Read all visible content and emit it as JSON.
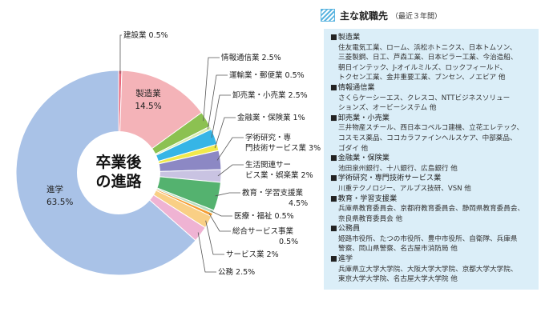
{
  "chart_data": {
    "type": "pie",
    "center_label": [
      "卒業後",
      "の進路"
    ],
    "slices": [
      {
        "name": "建設業",
        "value": 0.5,
        "unit": "%",
        "color": "#e8697d",
        "label_side": "right"
      },
      {
        "name": "製造業",
        "value": 14.5,
        "unit": "%",
        "color": "#f4b3b8",
        "label_side": "inside"
      },
      {
        "name": "情報通信業",
        "value": 2.5,
        "unit": "%",
        "color": "#8cc151",
        "label_side": "right"
      },
      {
        "name": "運輸業・郵便業",
        "value": 0.5,
        "unit": "%",
        "color": "#d8ecae",
        "label_side": "right"
      },
      {
        "name": "卸売業・小売業",
        "value": 2.5,
        "unit": "%",
        "color": "#36b5e6",
        "label_side": "right"
      },
      {
        "name": "金融業・保険業",
        "value": 1,
        "unit": "%",
        "color": "#f1e94b",
        "label_side": "right"
      },
      {
        "name": "学術研究・専門技術サービス業",
        "value": 3,
        "unit": "%",
        "color": "#8c88c4",
        "label_side": "right"
      },
      {
        "name": "生活関連サービス業・娯楽業",
        "value": 2,
        "unit": "%",
        "color": "#c9c3e2",
        "label_side": "right"
      },
      {
        "name": "教育・学習支援業",
        "value": 4.5,
        "unit": "%",
        "color": "#54b26f",
        "label_side": "right"
      },
      {
        "name": "医療・福祉",
        "value": 0.5,
        "unit": "%",
        "color": "#b4dcbd",
        "label_side": "right"
      },
      {
        "name": "総合サービス事業",
        "value": 0.5,
        "unit": "%",
        "color": "#f59c31",
        "label_side": "right"
      },
      {
        "name": "サービス業",
        "value": 2,
        "unit": "%",
        "color": "#f9cf85",
        "label_side": "right"
      },
      {
        "name": "公務",
        "value": 2.5,
        "unit": "%",
        "color": "#efb3d3",
        "label_side": "right"
      },
      {
        "name": "進学",
        "value": 63.5,
        "unit": "%",
        "color": "#a9c2e7",
        "label_side": "inside"
      }
    ]
  },
  "panel": {
    "title": "主な就職先",
    "note": "（最近３年間）",
    "categories": [
      {
        "name": "製造業",
        "companies": "住友電気工業、ローム、浜松ホトニクス、日本トムソン、\n三菱製鋼、日工、芦森工業、日本ピラー工業、今治造船、\n朝日インテック、J-オイルミルズ、ロックフィールド、\nトクセン工業、金井重要工業、ブンセン、ノエビア 他"
      },
      {
        "name": "情報通信業",
        "companies": "さくらケーシーエス、クレスコ、NTTビジネスソリュー\nションズ、オービーシステム 他"
      },
      {
        "name": "卸売業・小売業",
        "companies": "三井物産スチール、西日本コベルコ建機、立花エレテック、\nコスモス薬品、ココカラファインヘルスケア、中部薬品、\nゴダイ 他"
      },
      {
        "name": "金融業・保険業",
        "companies": "池田泉州銀行、十八銀行、広島銀行 他"
      },
      {
        "name": "学術研究・専門技術サービス業",
        "companies": "川重テクノロジー、アルプス技研、VSN 他"
      },
      {
        "name": "教育・学習支援業",
        "companies": "兵庫県教育委員会、京都府教育委員会、静岡県教育委員会、\n奈良県教育委員会 他"
      },
      {
        "name": "公務員",
        "companies": "姫路市役所、たつの市役所、豊中市役所、自衛隊、兵庫県\n警察、岡山県警察、名古屋市消防局 他"
      },
      {
        "name": "進学",
        "companies": "兵庫県立大学大学院、大阪大学大学院、京都大学大学院、\n東京大学大学院、名古屋大学大学院 他"
      }
    ]
  }
}
